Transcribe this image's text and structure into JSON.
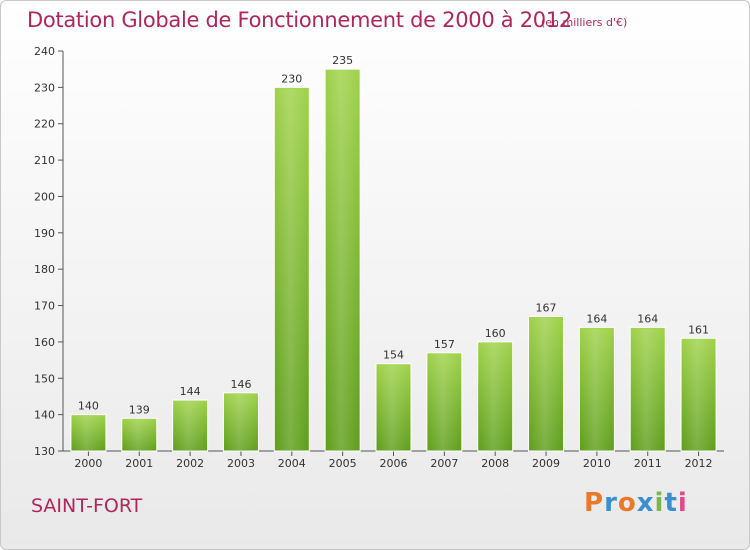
{
  "header": {
    "title": "Dotation Globale de Fonctionnement de 2000 à 2012",
    "unit": "(en milliers d'€)"
  },
  "footer": {
    "commune": "SAINT-FORT",
    "logo_text": "Proxiti",
    "logo_colors": [
      "#e8792b",
      "#3a8fd0",
      "#e8792b",
      "#3a8fd0",
      "#7ab648",
      "#3a8fd0",
      "#e04a8a"
    ]
  },
  "chart_data": {
    "type": "bar",
    "title": "Dotation Globale de Fonctionnement de 2000 à 2012",
    "ylabel": "",
    "xlabel": "",
    "categories": [
      "2000",
      "2001",
      "2002",
      "2003",
      "2004",
      "2005",
      "2006",
      "2007",
      "2008",
      "2009",
      "2010",
      "2011",
      "2012"
    ],
    "values": [
      140,
      139,
      144,
      146,
      230,
      235,
      154,
      157,
      160,
      167,
      164,
      164,
      161
    ],
    "ylim": [
      130,
      240
    ],
    "yticks": [
      130,
      140,
      150,
      160,
      170,
      180,
      190,
      200,
      210,
      220,
      230,
      240
    ],
    "grid": false,
    "legend": "none",
    "bar_color": "#7cb82f"
  }
}
